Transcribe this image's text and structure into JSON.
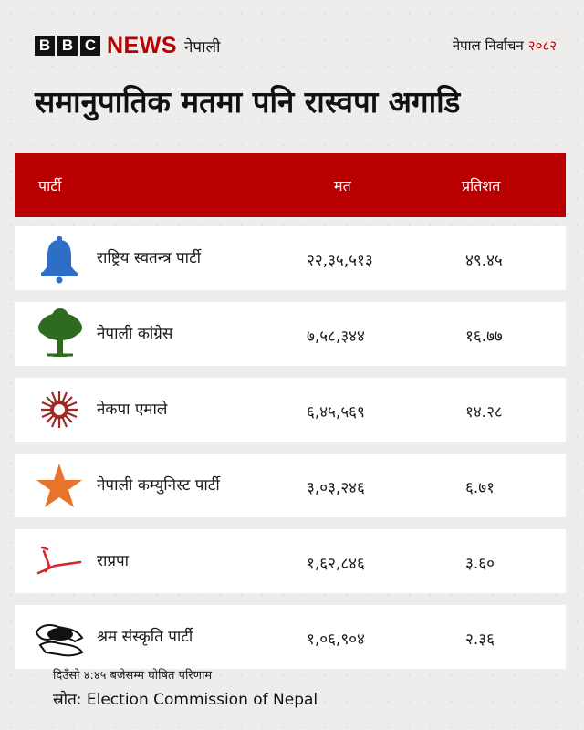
{
  "header": {
    "bbc_letters": [
      "B",
      "B",
      "C"
    ],
    "news_word": "NEWS",
    "service_name": "नेपाली",
    "election_label": "नेपाल निर्वाचन",
    "election_year": "२०८२"
  },
  "headline": "समानुपातिक मतमा पनि रास्वपा अगाडि",
  "table": {
    "headers": {
      "party": "पार्टी",
      "votes": "मत",
      "percent": "प्रतिशत"
    },
    "rows": [
      {
        "party": "राष्ट्रिय स्वतन्त्र पार्टी",
        "votes": "२२,३५,५१३",
        "percent": "४९.४५",
        "icon": "bell-icon"
      },
      {
        "party": "नेपाली कांग्रेस",
        "votes": "७,५८,३४४",
        "percent": "१६.७७",
        "icon": "tree-icon"
      },
      {
        "party": "नेकपा एमाले",
        "votes": "६,४५,५६९",
        "percent": "१४.२८",
        "icon": "sun-icon"
      },
      {
        "party": "नेपाली कम्युनिस्ट पार्टी",
        "votes": "३,०३,२४६",
        "percent": "६.७१",
        "icon": "star-icon"
      },
      {
        "party": "राप्रपा",
        "votes": "१,६२,८४६",
        "percent": "३.६०",
        "icon": "plough-icon"
      },
      {
        "party": "श्रम संस्कृति पार्टी",
        "votes": "१,०६,९०४",
        "percent": "२.३६",
        "icon": "hands-icon"
      }
    ]
  },
  "footer": {
    "time_note": "दिउँसो ४:४५ बजेसम्म घोषित परिणाम",
    "source": "स्रोत: Election Commission of Nepal"
  },
  "colors": {
    "brand_red": "#b80000",
    "background": "#eeedeb",
    "bell_blue": "#2f6ec6",
    "tree_green": "#2e6a1f",
    "sun_red": "#9e2a25",
    "star_orange": "#e8742c",
    "plough_red": "#d0282e"
  }
}
